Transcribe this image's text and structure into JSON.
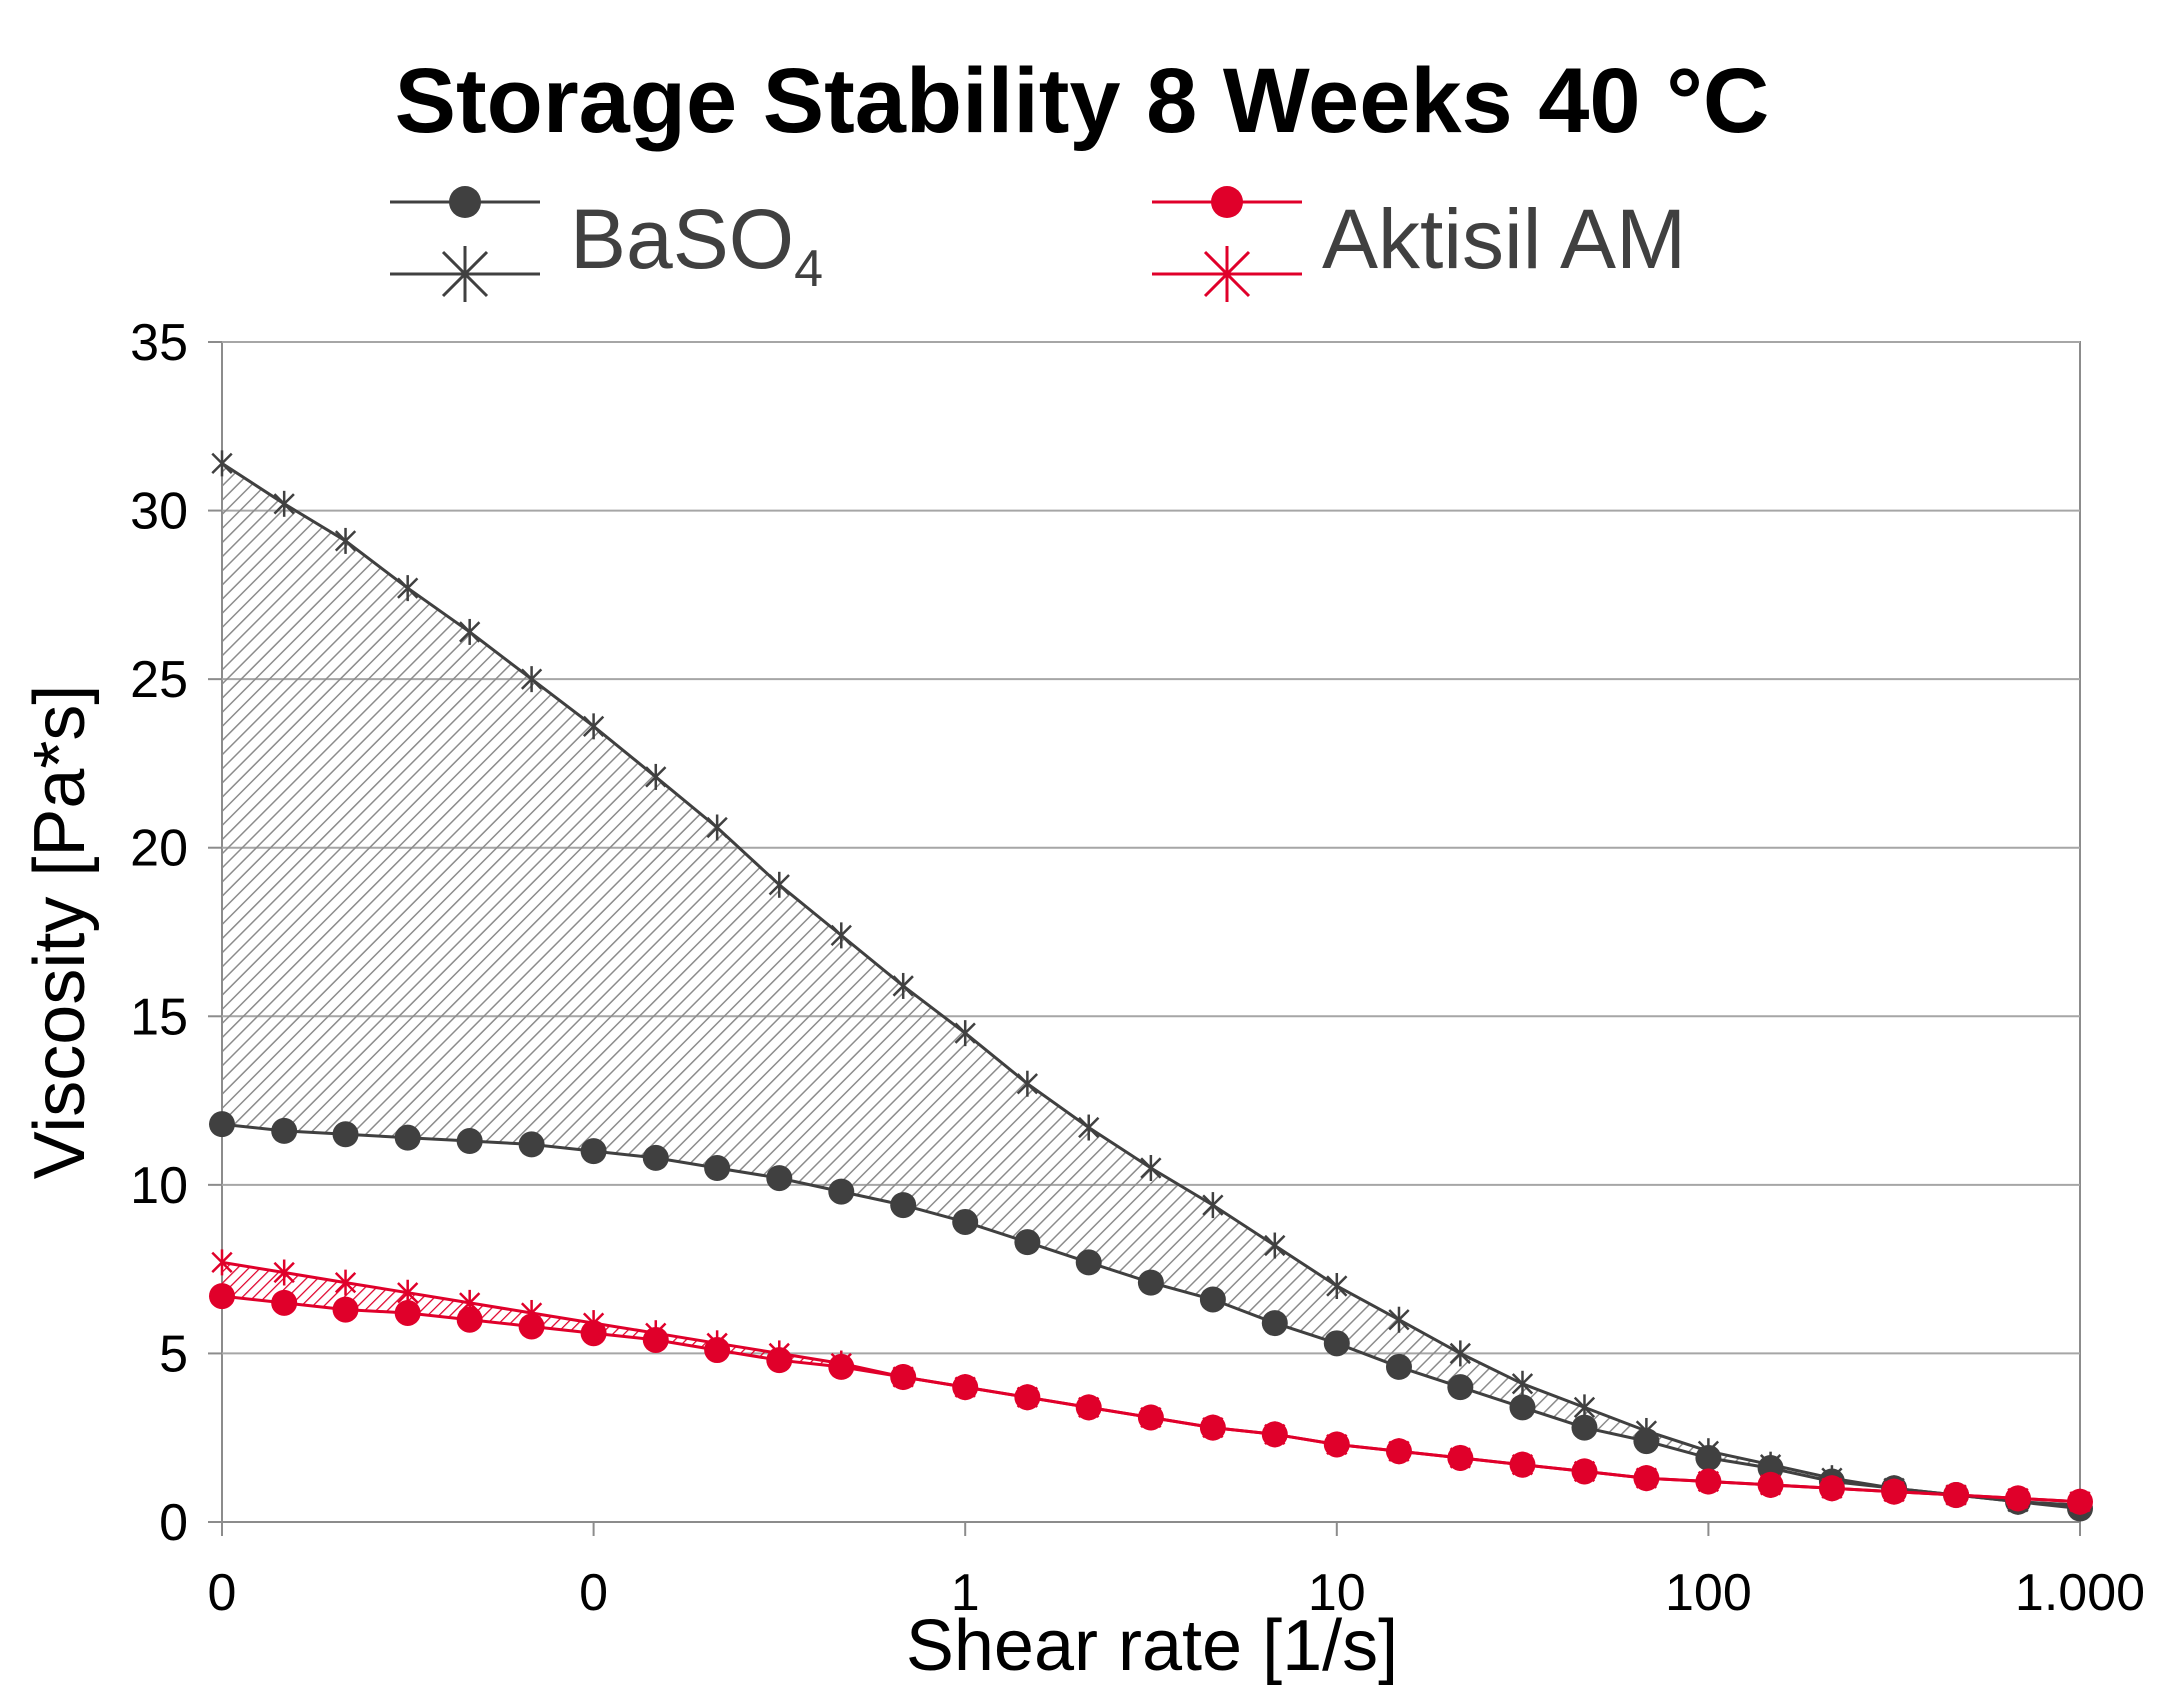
{
  "chart_data": {
    "type": "line",
    "title": "Storage Stability 8 Weeks 40 °C",
    "xlabel": "Shear rate [1/s]",
    "ylabel": "Viscosity [Pa*s]",
    "xscale": "log",
    "xlim": [
      0.01,
      1000
    ],
    "ylim": [
      0,
      35
    ],
    "yticks": [
      0,
      5,
      10,
      15,
      20,
      25,
      30,
      35
    ],
    "yticklabels": [
      "0",
      "5",
      "10",
      "15",
      "20",
      "25",
      "30",
      "35"
    ],
    "xticks": [
      0.01,
      0.1,
      1,
      10,
      100,
      1000
    ],
    "xticklabels": [
      "0",
      "0",
      "1",
      "10",
      "100",
      "1.000"
    ],
    "grid": "horizontal",
    "legend_position": "top",
    "legend": [
      {
        "label": "BaSO",
        "subscript": "4",
        "color": "#404040"
      },
      {
        "label": "Aktisil AM",
        "color": "#e0002a"
      }
    ],
    "colors": {
      "baso4": "#404040",
      "aktisil": "#e0002a"
    },
    "x": [
      0.01,
      0.0147,
      0.0215,
      0.0316,
      0.0464,
      0.0681,
      0.1,
      0.147,
      0.215,
      0.316,
      0.464,
      0.681,
      1,
      1.47,
      2.15,
      3.16,
      4.64,
      6.81,
      10,
      14.7,
      21.5,
      31.6,
      46.4,
      68.1,
      100,
      147,
      215,
      316,
      464,
      681,
      1000
    ],
    "series": [
      {
        "group": "baso4",
        "marker": "asterisk",
        "values": [
          31.4,
          30.2,
          29.1,
          27.7,
          26.4,
          25.0,
          23.6,
          22.1,
          20.6,
          18.9,
          17.4,
          15.9,
          14.5,
          13.0,
          11.7,
          10.5,
          9.4,
          8.2,
          7.0,
          6.0,
          5.0,
          4.1,
          3.4,
          2.7,
          2.1,
          1.7,
          1.3,
          1.0,
          0.8,
          0.6,
          0.5
        ]
      },
      {
        "group": "baso4",
        "marker": "circle",
        "values": [
          11.8,
          11.6,
          11.5,
          11.4,
          11.3,
          11.2,
          11.0,
          10.8,
          10.5,
          10.2,
          9.8,
          9.4,
          8.9,
          8.3,
          7.7,
          7.1,
          6.6,
          5.9,
          5.3,
          4.6,
          4.0,
          3.4,
          2.8,
          2.4,
          1.9,
          1.6,
          1.2,
          1.0,
          0.8,
          0.6,
          0.4
        ]
      },
      {
        "group": "aktisil",
        "marker": "asterisk",
        "values": [
          7.7,
          7.4,
          7.1,
          6.8,
          6.5,
          6.2,
          5.9,
          5.6,
          5.3,
          5.0,
          4.7,
          4.3,
          4.0,
          3.7,
          3.4,
          3.1,
          2.8,
          2.6,
          2.3,
          2.1,
          1.9,
          1.7,
          1.5,
          1.3,
          1.2,
          1.1,
          1.0,
          0.9,
          0.8,
          0.7,
          0.6
        ]
      },
      {
        "group": "aktisil",
        "marker": "circle",
        "values": [
          6.7,
          6.5,
          6.3,
          6.2,
          6.0,
          5.8,
          5.6,
          5.4,
          5.1,
          4.8,
          4.6,
          4.3,
          4.0,
          3.7,
          3.4,
          3.1,
          2.8,
          2.6,
          2.3,
          2.1,
          1.9,
          1.7,
          1.5,
          1.3,
          1.2,
          1.1,
          1.0,
          0.9,
          0.8,
          0.7,
          0.6
        ]
      }
    ]
  }
}
